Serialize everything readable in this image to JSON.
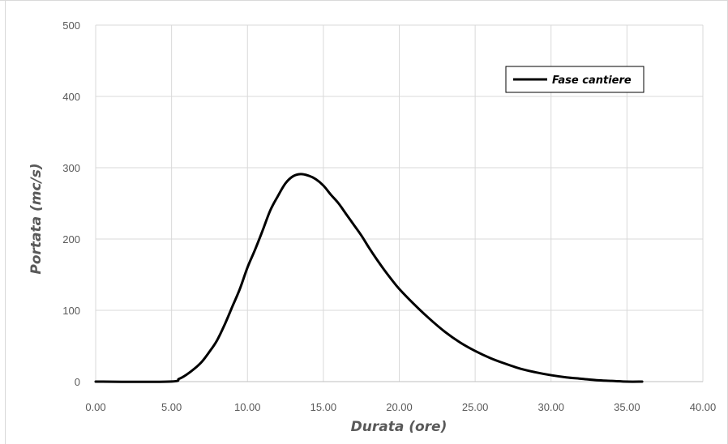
{
  "chart_data": {
    "type": "line",
    "title": "",
    "xlabel": "Durata (ore)",
    "ylabel": "Portata (mc/s)",
    "xlim": [
      0,
      40
    ],
    "ylim": [
      0,
      500
    ],
    "x_ticks": [
      "0.00",
      "5.00",
      "10.00",
      "15.00",
      "20.00",
      "25.00",
      "30.00",
      "35.00",
      "40.00"
    ],
    "y_ticks": [
      "0",
      "100",
      "200",
      "300",
      "400",
      "500"
    ],
    "grid": true,
    "legend_position": "top-right",
    "series": [
      {
        "name": "Fase cantiere",
        "color": "#000000",
        "x": [
          0,
          4.8,
          5.5,
          6,
          6.5,
          7,
          7.5,
          8,
          8.5,
          9,
          9.5,
          10,
          10.5,
          11,
          11.5,
          12,
          12.5,
          13,
          13.5,
          14,
          14.5,
          15,
          15.5,
          16,
          16.5,
          17,
          17.5,
          18,
          18.5,
          19,
          19.5,
          20,
          21,
          22,
          23,
          24,
          25,
          26,
          27,
          28,
          29,
          30,
          31,
          32,
          33,
          34,
          35,
          36
        ],
        "y": [
          0,
          0,
          4,
          10,
          18,
          28,
          42,
          58,
          80,
          105,
          130,
          160,
          185,
          212,
          240,
          260,
          278,
          288,
          291,
          289,
          284,
          275,
          262,
          250,
          235,
          220,
          205,
          188,
          172,
          157,
          143,
          130,
          108,
          88,
          70,
          55,
          43,
          33,
          25,
          18,
          13,
          9,
          6,
          4,
          2,
          1,
          0,
          0
        ]
      }
    ]
  }
}
